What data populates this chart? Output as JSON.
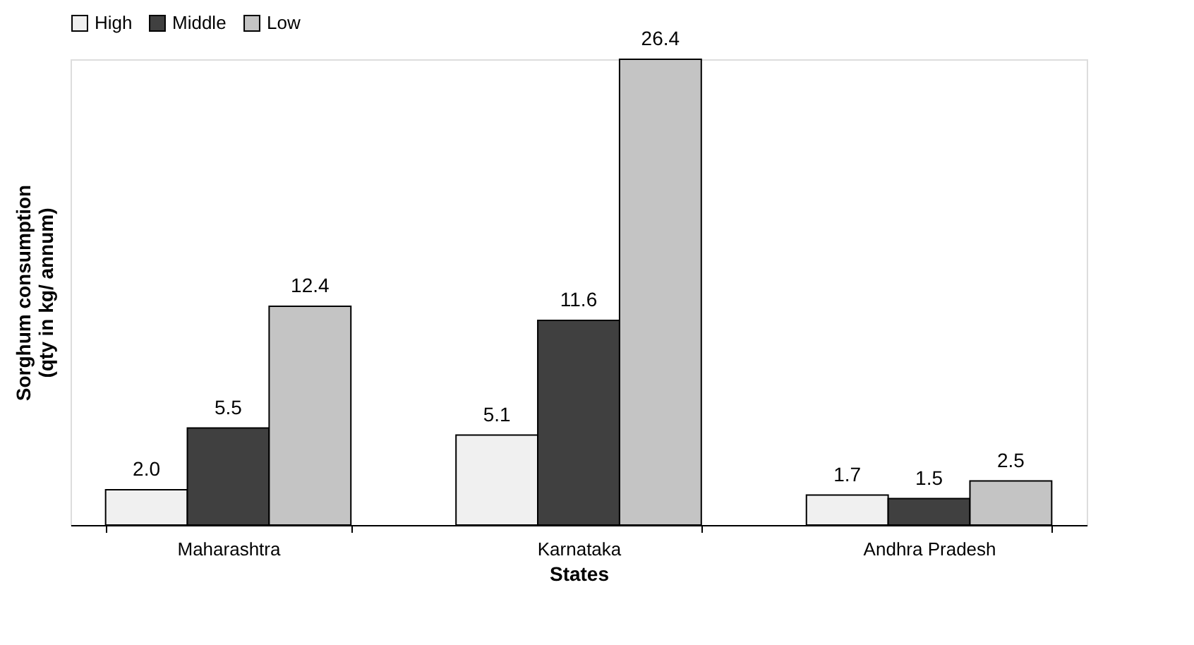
{
  "chart_data": {
    "type": "bar",
    "xlabel": "States",
    "ylabel": "Sorghum consumption\n(qty in kg/ annum)",
    "categories": [
      "Maharashtra",
      "Karnataka",
      "Andhra Pradesh"
    ],
    "series": [
      {
        "name": "High",
        "color": "#f0f0f0",
        "values": [
          2.0,
          5.1,
          1.7
        ],
        "value_labels": [
          "2.0",
          "5.1",
          "1.7"
        ]
      },
      {
        "name": "Middle",
        "color": "#404040",
        "values": [
          5.5,
          11.6,
          1.5
        ],
        "value_labels": [
          "5.5",
          "11.6",
          "1.5"
        ]
      },
      {
        "name": "Low",
        "color": "#c4c4c4",
        "values": [
          12.4,
          26.4,
          2.5
        ],
        "value_labels": [
          "12.4",
          "26.4",
          "2.5"
        ]
      }
    ],
    "legend": "top"
  }
}
